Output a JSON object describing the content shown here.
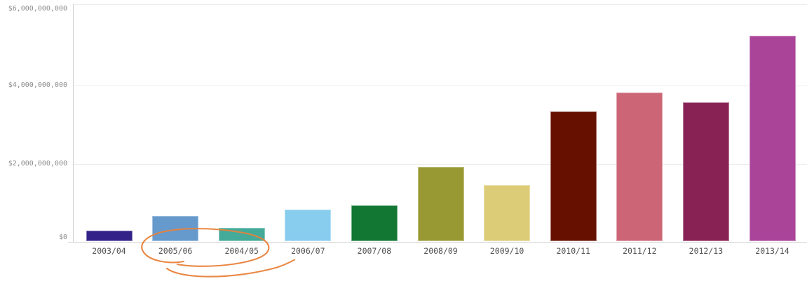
{
  "chart_data": {
    "type": "bar",
    "title": "",
    "xlabel": "",
    "ylabel": "",
    "categories": [
      "2003/04",
      "2005/06",
      "2004/05",
      "2006/07",
      "2007/08",
      "2008/09",
      "2009/10",
      "2010/11",
      "2011/12",
      "2012/13",
      "2013/14"
    ],
    "values": [
      280000000,
      640000000,
      340000000,
      800000000,
      920000000,
      1880000000,
      1430000000,
      3280000000,
      3760000000,
      3520000000,
      5190000000
    ],
    "bar_colors": [
      "#332288",
      "#6699CC",
      "#44AA99",
      "#88CCEE",
      "#117733",
      "#999933",
      "#DDCC77",
      "#661100",
      "#CC6677",
      "#882255",
      "#AA4499"
    ],
    "ylim": [
      0,
      6000000000
    ],
    "y_ticks": [
      {
        "label": "$0",
        "value": 0
      },
      {
        "label": "$2,000,000,000",
        "value": 2000000000
      },
      {
        "label": "$4,000,000,000",
        "value": 4000000000
      },
      {
        "label": "$6,000,000,000",
        "value": 6000000000
      }
    ],
    "grid": true,
    "legend": false
  },
  "annotation": {
    "type": "hand-drawn-circle",
    "color": "#e8823b",
    "circled_labels": [
      "2005/06",
      "2004/05"
    ]
  },
  "colors": {
    "background": "#ffffff",
    "gridline": "#ececec",
    "axis_line": "#cfcfcf",
    "y_tick_text": "#8c8c8c",
    "x_tick_text": "#4f4f4f"
  }
}
